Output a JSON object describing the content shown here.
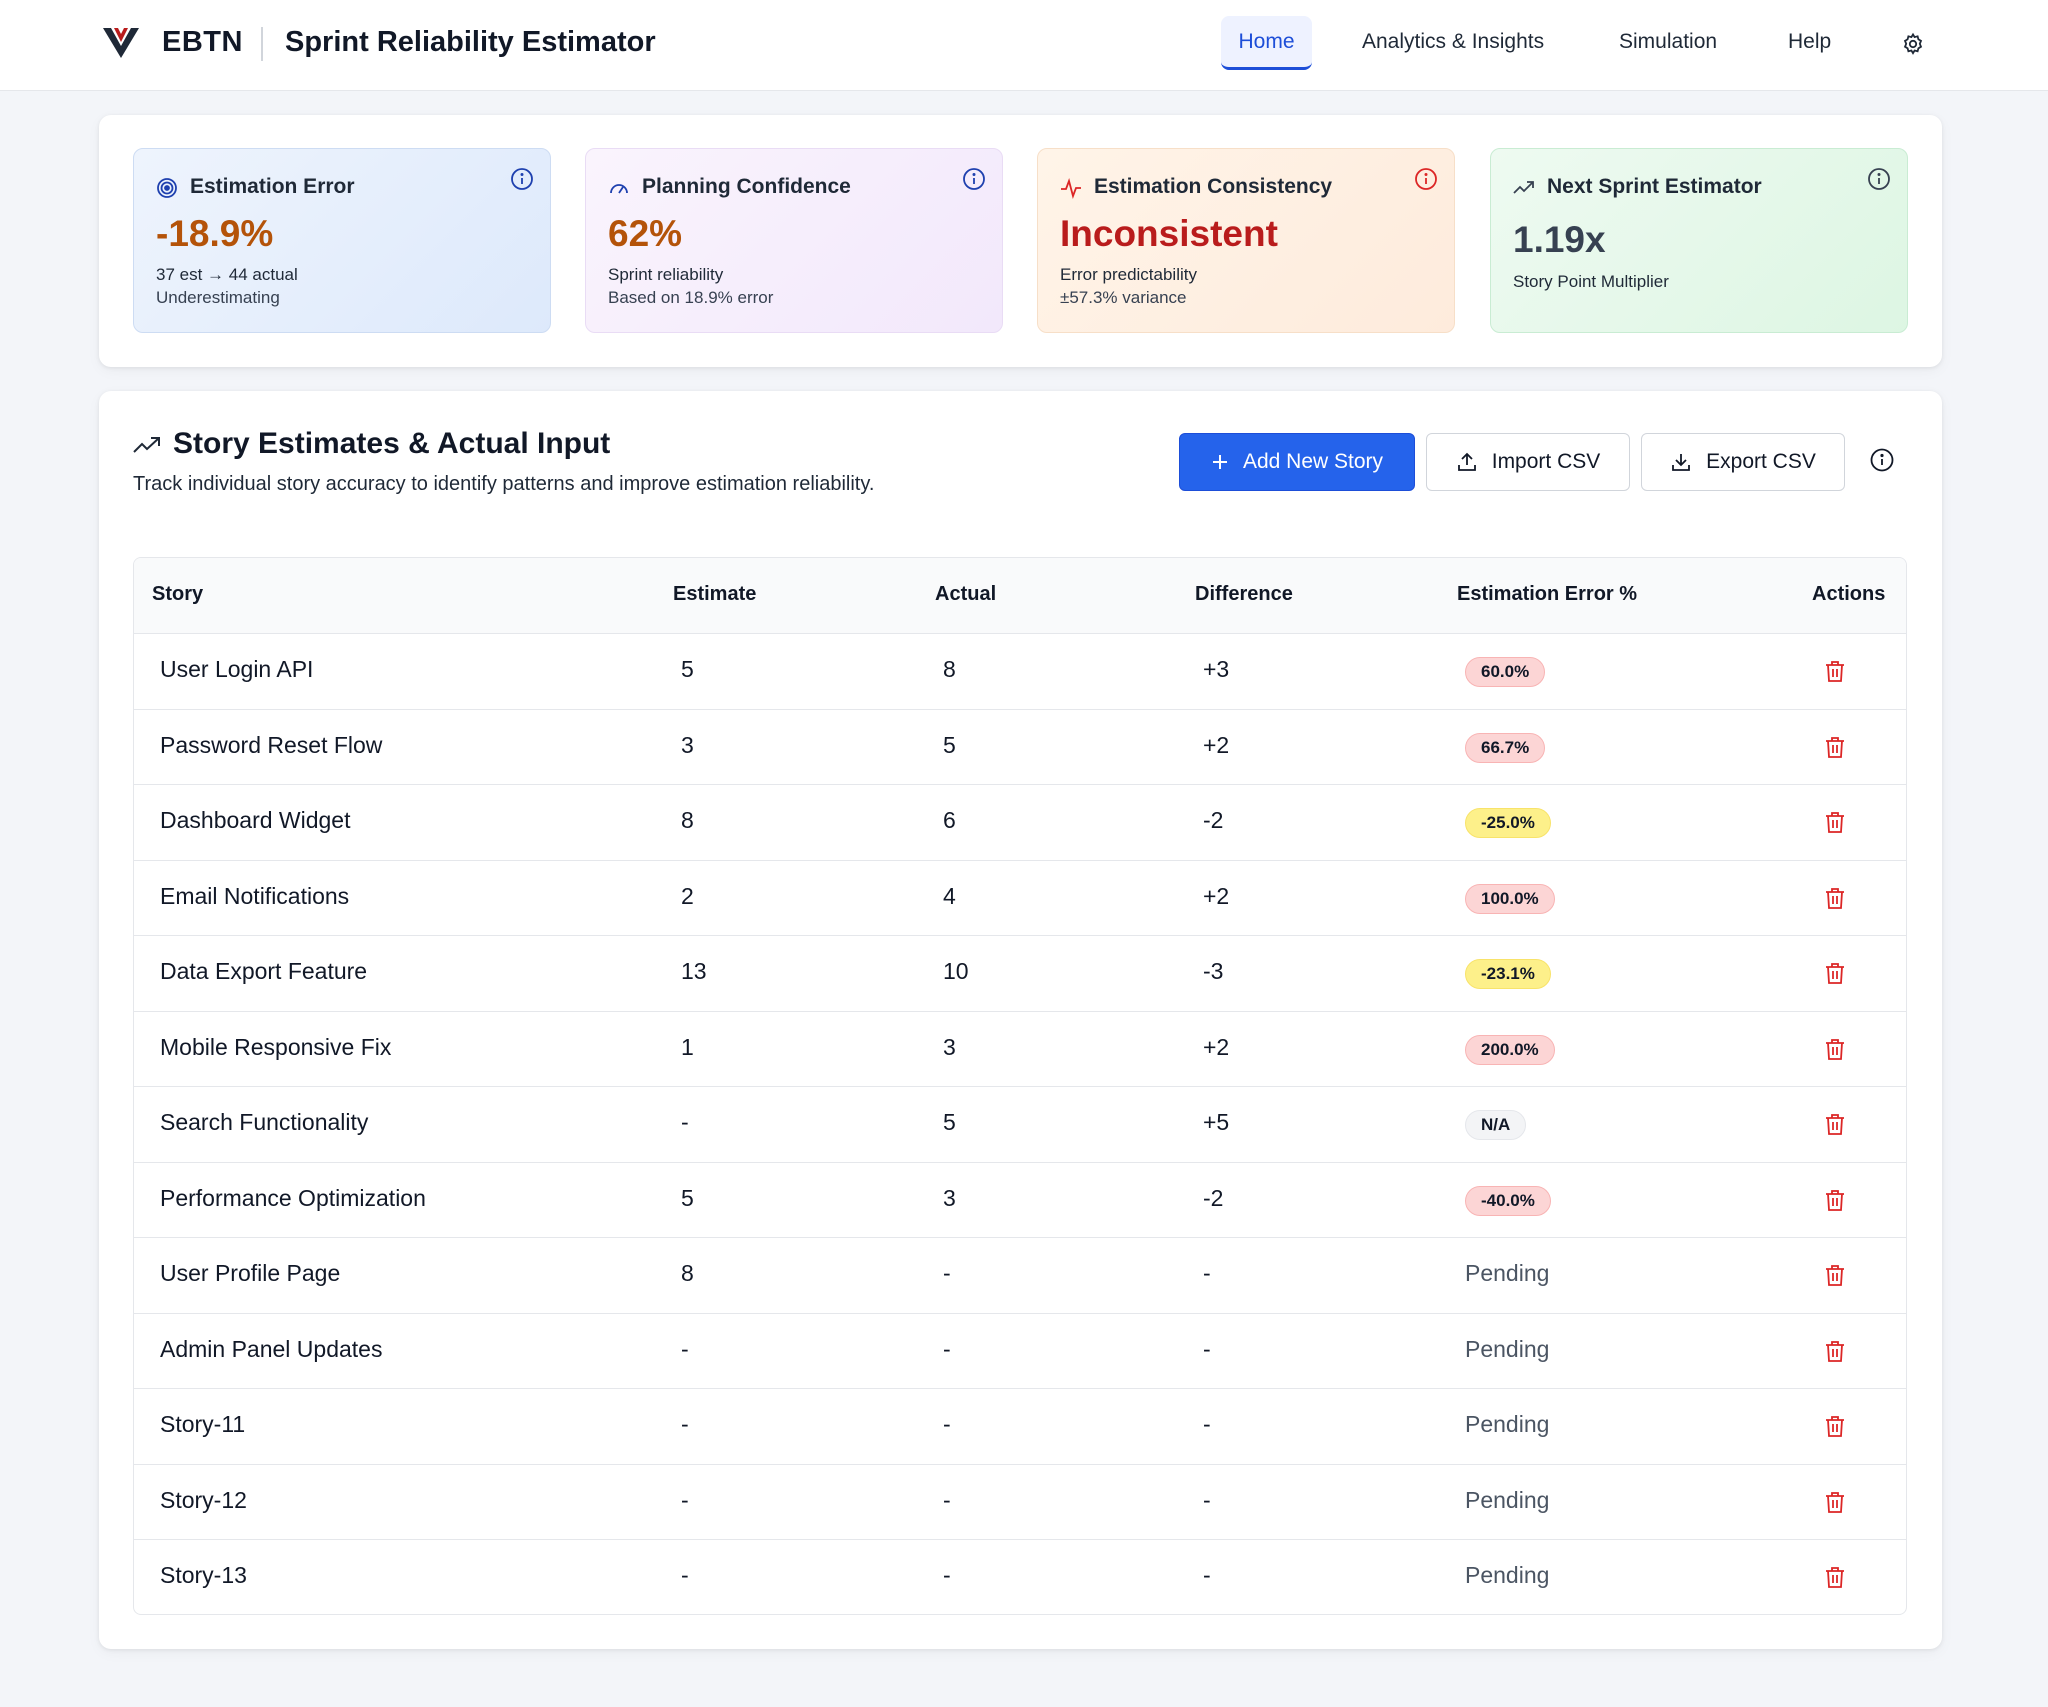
{
  "header": {
    "brand": "EBTN",
    "title": "Sprint Reliability Estimator",
    "nav": [
      "Home",
      "Analytics & Insights",
      "Simulation",
      "Help"
    ],
    "active_nav": "Home"
  },
  "cards": [
    {
      "title": "Estimation Error",
      "value": "-18.9%",
      "sub1": "37 est → 44 actual",
      "sub2": "Underestimating",
      "icon": "target-icon",
      "value_color": "#b45309"
    },
    {
      "title": "Planning Confidence",
      "value": "62%",
      "sub1": "Sprint reliability",
      "sub2": "Based on 18.9% error",
      "icon": "gauge-icon",
      "value_color": "#b45309"
    },
    {
      "title": "Estimation Consistency",
      "value": "Inconsistent",
      "sub1": "Error predictability",
      "sub2": "±57.3% variance",
      "icon": "activity-icon",
      "value_color": "#b91c1c"
    },
    {
      "title": "Next Sprint Estimator",
      "value": "1.19x",
      "sub1": "Story Point Multiplier",
      "icon": "trending-up-icon",
      "value_color": "#374151"
    }
  ],
  "section": {
    "title": "Story Estimates & Actual Input",
    "subtitle": "Track individual story accuracy to identify patterns and improve estimation reliability.",
    "add_label": "Add New Story",
    "import_label": "Import CSV",
    "export_label": "Export CSV"
  },
  "table": {
    "columns": [
      "Story",
      "Estimate",
      "Actual",
      "Difference",
      "Estimation Error %",
      "Actions"
    ],
    "rows": [
      {
        "story": "User Login API",
        "estimate": "5",
        "actual": "8",
        "difference": "+3",
        "error": "60.0%",
        "tone": "red"
      },
      {
        "story": "Password Reset Flow",
        "estimate": "3",
        "actual": "5",
        "difference": "+2",
        "error": "66.7%",
        "tone": "red"
      },
      {
        "story": "Dashboard Widget",
        "estimate": "8",
        "actual": "6",
        "difference": "-2",
        "error": "-25.0%",
        "tone": "yellow"
      },
      {
        "story": "Email Notifications",
        "estimate": "2",
        "actual": "4",
        "difference": "+2",
        "error": "100.0%",
        "tone": "red"
      },
      {
        "story": "Data Export Feature",
        "estimate": "13",
        "actual": "10",
        "difference": "-3",
        "error": "-23.1%",
        "tone": "yellow"
      },
      {
        "story": "Mobile Responsive Fix",
        "estimate": "1",
        "actual": "3",
        "difference": "+2",
        "error": "200.0%",
        "tone": "red"
      },
      {
        "story": "Search Functionality",
        "estimate": "-",
        "actual": "5",
        "difference": "+5",
        "error": "N/A",
        "tone": "gray"
      },
      {
        "story": "Performance Optimization",
        "estimate": "5",
        "actual": "3",
        "difference": "-2",
        "error": "-40.0%",
        "tone": "red"
      },
      {
        "story": "User Profile Page",
        "estimate": "8",
        "actual": "-",
        "difference": "-",
        "error": "Pending",
        "tone": "pending"
      },
      {
        "story": "Admin Panel Updates",
        "estimate": "-",
        "actual": "-",
        "difference": "-",
        "error": "Pending",
        "tone": "pending"
      },
      {
        "story": "Story-11",
        "estimate": "-",
        "actual": "-",
        "difference": "-",
        "error": "Pending",
        "tone": "pending"
      },
      {
        "story": "Story-12",
        "estimate": "-",
        "actual": "-",
        "difference": "-",
        "error": "Pending",
        "tone": "pending"
      },
      {
        "story": "Story-13",
        "estimate": "-",
        "actual": "-",
        "difference": "-",
        "error": "Pending",
        "tone": "pending"
      }
    ]
  },
  "colors": {
    "accent": "#2563eb",
    "danger": "#dc2626",
    "logo": "#b91c1c"
  }
}
